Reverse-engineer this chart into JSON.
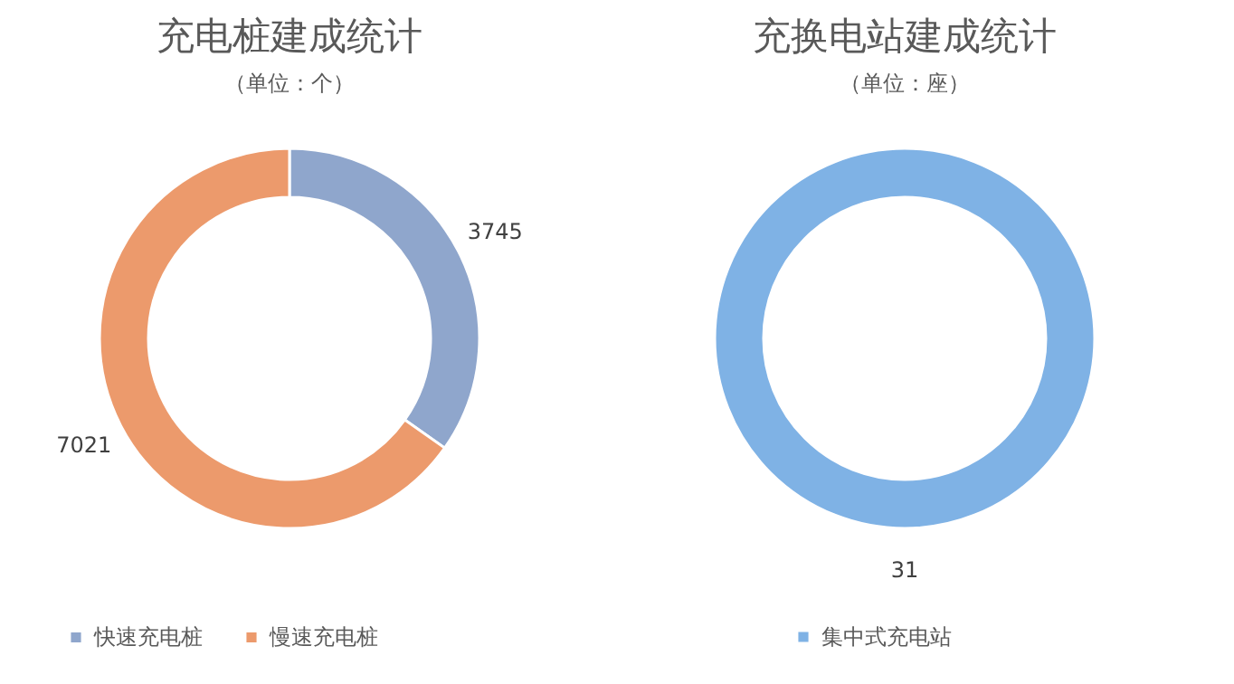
{
  "chart_data": [
    {
      "type": "donut",
      "title": "充电桩建成统计",
      "subtitle": "（单位：个）",
      "categories": [
        "快速充电桩",
        "慢速充电桩"
      ],
      "values": [
        3745,
        7021
      ],
      "colors": [
        "#8fa6cc",
        "#ec9a6c"
      ],
      "data_labels": true,
      "legend": "bottom"
    },
    {
      "type": "donut",
      "title": "充换电站建成统计",
      "subtitle": "（单位：座）",
      "categories": [
        "集中式充电站"
      ],
      "values": [
        31
      ],
      "colors": [
        "#7fb2e5"
      ],
      "data_labels": true,
      "legend": "bottom"
    }
  ]
}
